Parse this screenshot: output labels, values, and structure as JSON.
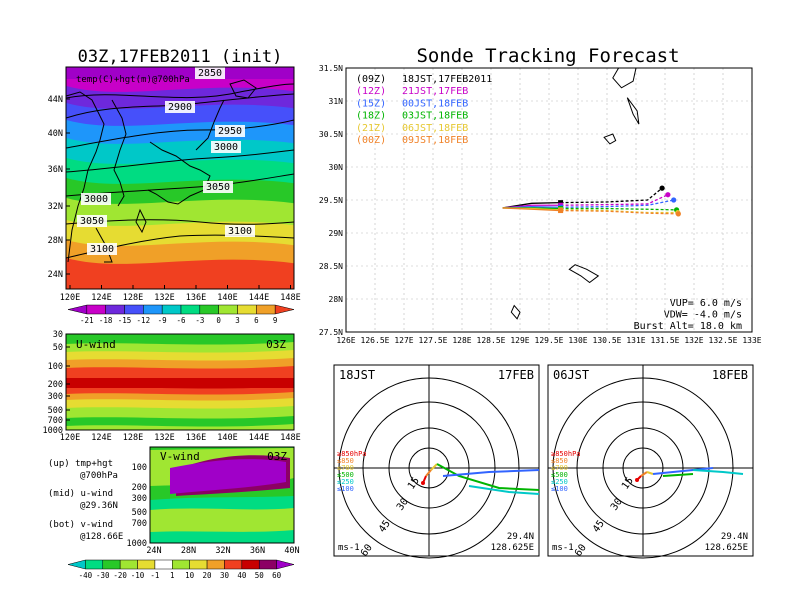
{
  "left_panel": {
    "title": "03Z,17FEB2011 (init)",
    "map_label": "temp(C)+hgt(m)@700hPa",
    "lat_ticks": [
      "44N",
      "40N",
      "36N",
      "32N",
      "28N",
      "24N"
    ],
    "lon_ticks": [
      "120E",
      "124E",
      "128E",
      "132E",
      "136E",
      "140E",
      "144E",
      "148E"
    ],
    "contours": [
      "2900",
      "2950",
      "3000",
      "3050",
      "3000",
      "3050",
      "3100",
      "3100",
      "2850"
    ],
    "temp_colorbar": [
      "-21",
      "-18",
      "-15",
      "-12",
      "-9",
      "-6",
      "-3",
      "0",
      "3",
      "6",
      "9"
    ],
    "temp_colors": [
      "#a000c8",
      "#c800c8",
      "#6e28dc",
      "#4650fa",
      "#1e96fa",
      "#00c8c8",
      "#00dc82",
      "#28c828",
      "#a0e632",
      "#e6dc32",
      "#f0a028",
      "#f04020"
    ],
    "uwind": {
      "label": "U-wind",
      "time": "03Z",
      "p_ticks": [
        "30",
        "50",
        "100",
        "200",
        "300",
        "500",
        "700",
        "1000"
      ],
      "lon_ticks": [
        "120E",
        "124E",
        "128E",
        "132E",
        "136E",
        "140E",
        "144E",
        "148E"
      ]
    },
    "vwind": {
      "label": "V-wind",
      "time": "03Z",
      "p_ticks": [
        "100",
        "200",
        "300",
        "500",
        "700",
        "1000"
      ],
      "lat_ticks": [
        "24N",
        "28N",
        "32N",
        "36N",
        "40N"
      ]
    },
    "notes": [
      [
        "(up) tmp+hgt",
        "@700hPa"
      ],
      [
        "(mid) u-wind",
        "@29.36N"
      ],
      [
        "(bot) v-wind",
        "@128.66E"
      ]
    ],
    "wind_colorbar": [
      "-40",
      "-30",
      "-20",
      "-10",
      "-1",
      "1",
      "10",
      "20",
      "30",
      "40",
      "50",
      "60"
    ],
    "wind_colors": [
      "#00c8c8",
      "#00dc82",
      "#28c828",
      "#a0e632",
      "#e6dc32",
      "#ffffff",
      "#a0e632",
      "#e6dc32",
      "#f0a028",
      "#f04020",
      "#c80000",
      "#8c0064",
      "#a000c8"
    ]
  },
  "right_panel": {
    "title": "Sonde Tracking Forecast",
    "legend": [
      {
        "code": "(09Z)",
        "label": "18JST,17FEB2011",
        "color": "#000000"
      },
      {
        "code": "(12Z)",
        "label": "21JST,17FEB",
        "color": "#c800c8"
      },
      {
        "code": "(15Z)",
        "label": "00JST,18FEB",
        "color": "#3264ff"
      },
      {
        "code": "(18Z)",
        "label": "03JST,18FEB",
        "color": "#00b400"
      },
      {
        "code": "(21Z)",
        "label": "06JST,18FEB",
        "color": "#e6c832"
      },
      {
        "code": "(00Z)",
        "label": "09JST,18FEB",
        "color": "#f08228"
      }
    ],
    "params": [
      "VUP= 6.0 m/s",
      "VDW= -4.0 m/s",
      "Burst Alt= 18.0 km"
    ]
  },
  "chart_data": [
    {
      "type": "line",
      "title": "Sonde Tracking Forecast",
      "xlim": [
        126,
        133
      ],
      "ylim": [
        27.5,
        31.5
      ],
      "x_ticks": [
        "126E",
        "126.5E",
        "127E",
        "127.5E",
        "128E",
        "128.5E",
        "129E",
        "129.5E",
        "130E",
        "130.5E",
        "131E",
        "131.5E",
        "132E",
        "132.5E",
        "133E"
      ],
      "y_ticks": [
        "27.5N",
        "28N",
        "28.5N",
        "29N",
        "29.5N",
        "30N",
        "30.5N",
        "31N",
        "31.5N"
      ],
      "series": [
        {
          "name": "(09Z) 18JST,17FEB2011",
          "color": "#000000",
          "points": [
            [
              128.7,
              29.38
            ],
            [
              129.2,
              29.45
            ],
            [
              129.7,
              29.46
            ],
            [
              130.5,
              29.47
            ],
            [
              131.2,
              29.5
            ],
            [
              131.45,
              29.68
            ]
          ]
        },
        {
          "name": "(12Z) 21JST,17FEB",
          "color": "#c800c8",
          "points": [
            [
              128.7,
              29.38
            ],
            [
              129.2,
              29.42
            ],
            [
              129.7,
              29.42
            ],
            [
              130.5,
              29.43
            ],
            [
              131.2,
              29.44
            ],
            [
              131.55,
              29.58
            ]
          ]
        },
        {
          "name": "(15Z) 00JST,18FEB",
          "color": "#3264ff",
          "points": [
            [
              128.7,
              29.38
            ],
            [
              129.2,
              29.4
            ],
            [
              129.7,
              29.39
            ],
            [
              130.5,
              29.4
            ],
            [
              131.2,
              29.42
            ],
            [
              131.65,
              29.5
            ]
          ]
        },
        {
          "name": "(18Z) 03JST,18FEB",
          "color": "#00b400",
          "points": [
            [
              128.7,
              29.38
            ],
            [
              129.2,
              29.38
            ],
            [
              129.7,
              29.37
            ],
            [
              130.5,
              29.37
            ],
            [
              131.2,
              29.36
            ],
            [
              131.7,
              29.35
            ]
          ]
        },
        {
          "name": "(21Z) 06JST,18FEB",
          "color": "#e6c832",
          "points": [
            [
              128.7,
              29.38
            ],
            [
              129.2,
              29.37
            ],
            [
              129.7,
              29.35
            ],
            [
              130.5,
              29.34
            ],
            [
              131.2,
              29.31
            ],
            [
              131.72,
              29.31
            ]
          ]
        },
        {
          "name": "(00Z) 09JST,18FEB",
          "color": "#f08228",
          "points": [
            [
              128.7,
              29.38
            ],
            [
              129.2,
              29.36
            ],
            [
              129.7,
              29.34
            ],
            [
              130.5,
              29.33
            ],
            [
              131.2,
              29.3
            ],
            [
              131.73,
              29.29
            ]
          ]
        }
      ]
    },
    {
      "type": "scatter",
      "title": "18JST 17FEB",
      "rings": [
        "15",
        "30",
        "45",
        "60"
      ],
      "location": [
        "29.4N",
        "128.625E"
      ],
      "unit": "ms-1",
      "level_legend": [
        "≥850hPa",
        "≤850",
        "≤700",
        "≤500",
        "≤250",
        "≤100"
      ],
      "level_colors": [
        "#e60000",
        "#f08228",
        "#e6c832",
        "#00b400",
        "#00c8c8",
        "#3264ff"
      ]
    },
    {
      "type": "scatter",
      "title": "06JST 18FEB",
      "rings": [
        "15",
        "30",
        "45",
        "60"
      ],
      "location": [
        "29.4N",
        "128.625E"
      ],
      "unit": "ms-1",
      "level_legend": [
        "≥850hPa",
        "≤850",
        "≤700",
        "≤500",
        "≤250",
        "≤100"
      ],
      "level_colors": [
        "#e60000",
        "#f08228",
        "#e6c832",
        "#00b400",
        "#00c8c8",
        "#3264ff"
      ]
    }
  ]
}
